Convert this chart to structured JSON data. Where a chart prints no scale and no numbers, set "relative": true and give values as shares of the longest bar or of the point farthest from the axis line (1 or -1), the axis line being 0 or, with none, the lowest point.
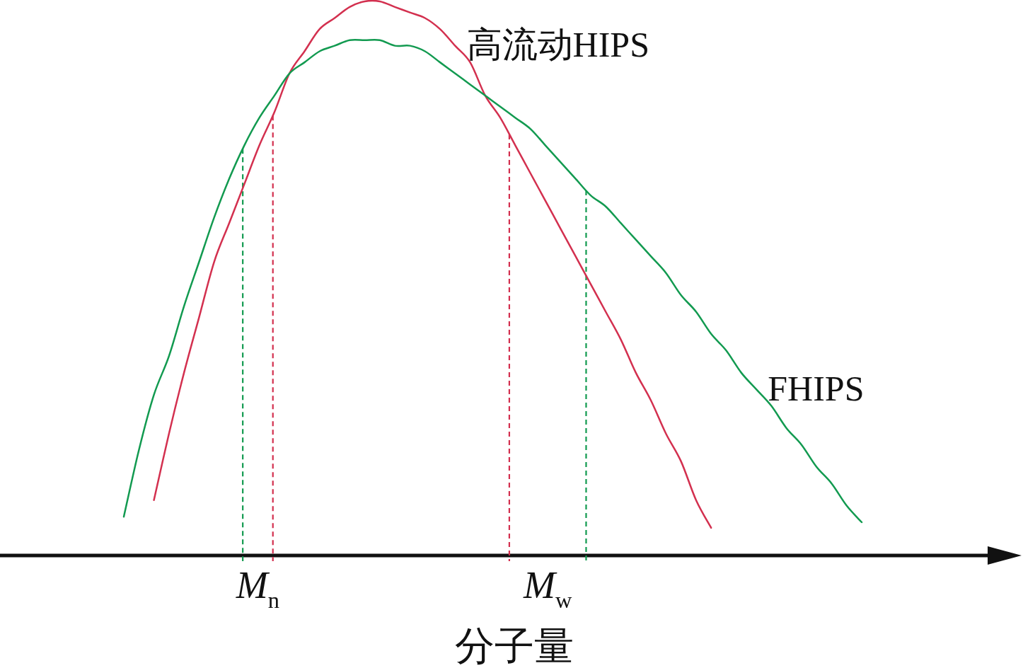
{
  "chart_data": {
    "type": "line",
    "relative": true,
    "xlabel": "分子量",
    "marker": "none",
    "line_style": "solid",
    "categories": [
      null,
      null,
      null,
      null,
      null,
      null,
      null,
      null,
      null,
      null,
      null,
      null,
      null,
      null,
      null,
      null,
      null,
      null,
      null,
      null,
      null,
      null,
      null,
      null,
      null,
      null,
      null,
      null,
      null,
      null,
      null,
      null,
      null,
      null,
      null,
      null,
      null,
      null,
      null,
      null,
      null,
      null,
      null,
      null,
      null,
      null,
      null,
      null,
      null,
      null
    ],
    "series": [
      {
        "name": "高流动HIPS",
        "color": "#d3304f",
        "values": [
          null,
          null,
          0.1,
          0.22,
          0.33,
          0.43,
          0.53,
          0.6,
          0.67,
          0.74,
          0.8,
          0.87,
          0.91,
          0.95,
          0.97,
          0.99,
          1.0,
          1.0,
          0.99,
          0.98,
          0.97,
          0.95,
          0.92,
          0.89,
          0.83,
          0.79,
          0.74,
          0.69,
          0.64,
          0.59,
          0.54,
          0.49,
          0.44,
          0.39,
          0.33,
          0.28,
          0.22,
          0.17,
          0.1,
          0.05,
          null,
          null,
          null,
          null,
          null,
          null,
          null,
          null,
          null,
          null
        ]
      },
      {
        "name": "FHIPS",
        "color": "#129a50",
        "values": [
          0.07,
          0.19,
          0.29,
          0.36,
          0.45,
          0.53,
          0.61,
          0.68,
          0.74,
          0.79,
          0.83,
          0.87,
          0.89,
          0.91,
          0.92,
          0.93,
          0.93,
          0.93,
          0.92,
          0.92,
          0.91,
          0.89,
          0.87,
          0.85,
          0.83,
          0.81,
          0.79,
          0.77,
          0.74,
          0.71,
          0.68,
          0.65,
          0.63,
          0.6,
          0.57,
          0.54,
          0.51,
          0.47,
          0.44,
          0.4,
          0.37,
          0.33,
          0.3,
          0.27,
          0.23,
          0.2,
          0.16,
          0.13,
          0.09,
          0.06
        ]
      }
    ],
    "annotations": [
      "M$_{n}$",
      "M$_{w}$"
    ]
  }
}
